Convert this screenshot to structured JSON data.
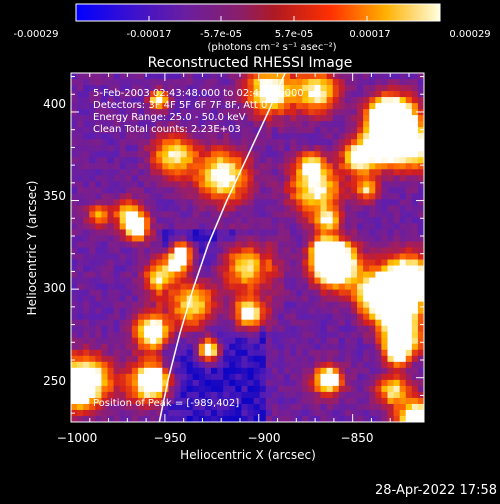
{
  "colorbar": {
    "ticks": [
      "-0.00029",
      "-0.00017",
      "-5.7e-05",
      "5.7e-05",
      "0.00017",
      "0.00029"
    ],
    "unit_label": "(photons cm⁻² s⁻¹ asec⁻²)",
    "range": [
      -0.00029,
      0.00029
    ]
  },
  "plot": {
    "title": "Reconstructed RHESSI Image",
    "annotations": [
      "5-Feb-2003 02:43:48.000 to 02:46:52.000",
      "Detectors: 3F 4F 5F 6F 7F 8F, Att 0",
      "Energy Range: 25.0 - 50.0 keV",
      "Clean   Total counts: 2.23E+03"
    ],
    "peak_label": "Position of Peak = [-989,402]"
  },
  "footer": {
    "timestamp": "28-Apr-2022 17:58"
  },
  "colors": {
    "background": "#000000",
    "limb_line": "#ffffff",
    "colormap": [
      "#000000",
      "#0000c8",
      "#5a1eb4",
      "#8c1e78",
      "#d21e1e",
      "#ff6400",
      "#ffc800",
      "#ffffff"
    ]
  },
  "chart_data": {
    "type": "heatmap",
    "title": "Reconstructed RHESSI Image",
    "xlabel": "Heliocentric X (arcsec)",
    "ylabel": "Heliocentric Y (arcsec)",
    "xlim": [
      -1000,
      -812
    ],
    "ylim": [
      225,
      422
    ],
    "xticks": [
      -1000,
      -950,
      -900,
      -850
    ],
    "xtick_labels": [
      "−1000",
      "−950",
      "−900",
      "−850"
    ],
    "yticks": [
      250,
      300,
      350,
      400
    ],
    "ytick_labels": [
      "250",
      "300",
      "350",
      "400"
    ],
    "colorbar_range": [
      -0.00029,
      0.00029
    ],
    "limb_curve": [
      [
        -953,
        225
      ],
      [
        -948,
        250
      ],
      [
        -942,
        275
      ],
      [
        -935,
        300
      ],
      [
        -927,
        325
      ],
      [
        -917,
        350
      ],
      [
        -906,
        375
      ],
      [
        -895,
        400
      ],
      [
        -886,
        422
      ]
    ],
    "peak_position": [
      -989,
      402
    ]
  }
}
